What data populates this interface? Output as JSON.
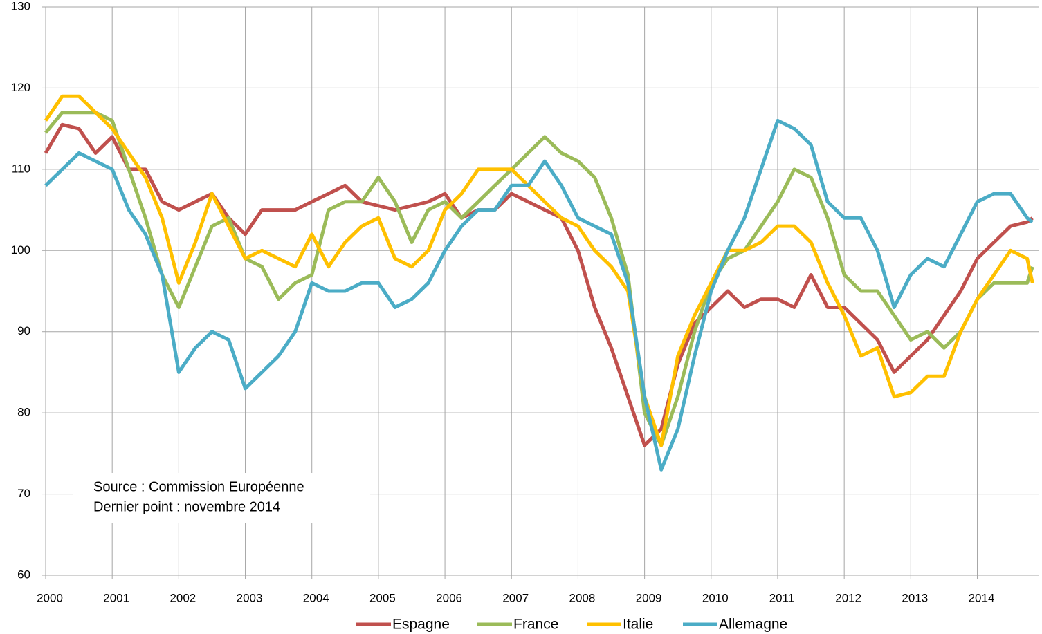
{
  "chart_data": {
    "type": "line",
    "x": [
      2000,
      2000.25,
      2000.5,
      2000.75,
      2001,
      2001.25,
      2001.5,
      2001.75,
      2002,
      2002.25,
      2002.5,
      2002.75,
      2003,
      2003.25,
      2003.5,
      2003.75,
      2004,
      2004.25,
      2004.5,
      2004.75,
      2005,
      2005.25,
      2005.5,
      2005.75,
      2006,
      2006.25,
      2006.5,
      2006.75,
      2007,
      2007.25,
      2007.5,
      2007.75,
      2008,
      2008.25,
      2008.5,
      2008.75,
      2009,
      2009.25,
      2009.5,
      2009.75,
      2010,
      2010.25,
      2010.5,
      2010.75,
      2011,
      2011.25,
      2011.5,
      2011.75,
      2012,
      2012.25,
      2012.5,
      2012.75,
      2013,
      2013.25,
      2013.5,
      2013.75,
      2014,
      2014.25,
      2014.5,
      2014.75,
      2014.83
    ],
    "series": [
      {
        "name": "Espagne",
        "color": "#c0504d",
        "values": [
          112,
          115.5,
          115,
          112,
          114,
          110,
          110,
          106,
          105,
          106,
          107,
          104,
          102,
          105,
          105,
          105,
          106,
          107,
          108,
          106,
          105.5,
          105,
          105.5,
          106,
          107,
          104,
          105,
          105,
          107,
          106,
          105,
          104,
          100,
          93,
          88,
          82,
          76,
          78,
          86,
          91,
          93,
          95,
          93,
          94,
          94,
          93,
          97,
          93,
          93,
          91,
          89,
          85,
          87,
          89,
          92,
          95,
          99,
          101,
          103,
          103.5,
          104
        ]
      },
      {
        "name": "France",
        "color": "#9bbb59",
        "values": [
          114.5,
          117,
          117,
          117,
          116,
          110,
          104,
          97,
          93,
          98,
          103,
          104,
          99,
          98,
          94,
          96,
          97,
          105,
          106,
          106,
          109,
          106,
          101,
          105,
          106,
          104,
          106,
          108,
          110,
          112,
          114,
          112,
          111,
          109,
          104,
          97,
          80,
          76,
          82,
          90,
          96,
          99,
          100,
          103,
          106,
          110,
          109,
          104,
          97,
          95,
          95,
          92,
          89,
          90,
          88,
          90,
          94,
          96,
          96,
          96,
          98
        ]
      },
      {
        "name": "Italie",
        "color": "#ffc000",
        "values": [
          116,
          119,
          119,
          117,
          115,
          112,
          109,
          104,
          96,
          101,
          107,
          103,
          99,
          100,
          99,
          98,
          102,
          98,
          101,
          103,
          104,
          99,
          98,
          100,
          105,
          107,
          110,
          110,
          110,
          108,
          106,
          104,
          103,
          100,
          98,
          95,
          82,
          76,
          87,
          92,
          96,
          100,
          100,
          101,
          103,
          103,
          101,
          96,
          92,
          87,
          88,
          82,
          82.5,
          84.5,
          84.5,
          90,
          94,
          97,
          100,
          99,
          96
        ]
      },
      {
        "name": "Allemagne",
        "color": "#4bacc6",
        "values": [
          108,
          110,
          112,
          111,
          110,
          105,
          102,
          97,
          85,
          88,
          90,
          89,
          83,
          85,
          87,
          90,
          96,
          95,
          95,
          96,
          96,
          93,
          94,
          96,
          100,
          103,
          105,
          105,
          108,
          108,
          111,
          108,
          104,
          103,
          102,
          96,
          82,
          73,
          78,
          87,
          95,
          100,
          104,
          110,
          116,
          115,
          113,
          106,
          104,
          104,
          100,
          93,
          97,
          99,
          98,
          102,
          106,
          107,
          107,
          104,
          103.5
        ]
      }
    ],
    "xlim": [
      2000,
      2014.92
    ],
    "xticks": [
      2000,
      2001,
      2002,
      2003,
      2004,
      2005,
      2006,
      2007,
      2008,
      2009,
      2010,
      2011,
      2012,
      2013,
      2014
    ],
    "ylim": [
      60,
      130
    ],
    "yticks": [
      60,
      70,
      80,
      90,
      100,
      110,
      120,
      130
    ],
    "grid": true,
    "legend": "bottom",
    "annotations": [
      "Source : Commission Européenne",
      "Dernier point : novembre 2014"
    ]
  }
}
